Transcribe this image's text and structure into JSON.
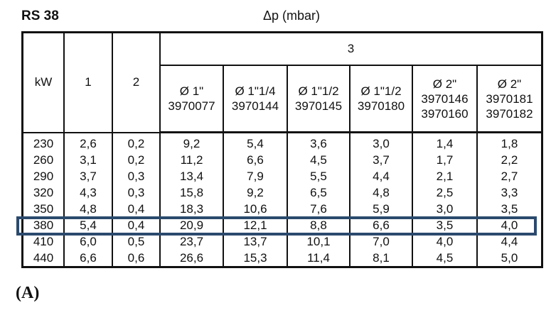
{
  "model_label": "RS 38",
  "unit_label": "Δp (mbar)",
  "header": {
    "col_kw": "kW",
    "col_1": "1",
    "col_2": "2",
    "group_3": "3",
    "sub": [
      {
        "size": "Ø 1\"",
        "codes": [
          "3970077"
        ]
      },
      {
        "size": "Ø 1\"1/4",
        "codes": [
          "3970144"
        ]
      },
      {
        "size": "Ø 1\"1/2",
        "codes": [
          "3970145"
        ]
      },
      {
        "size": "Ø 1\"1/2",
        "codes": [
          "3970180"
        ]
      },
      {
        "size": "Ø 2\"",
        "codes": [
          "3970146",
          "3970160"
        ]
      },
      {
        "size": "Ø 2\"",
        "codes": [
          "3970181",
          "3970182"
        ]
      }
    ]
  },
  "rows": [
    [
      "230",
      "2,6",
      "0,2",
      "9,2",
      "5,4",
      "3,6",
      "3,0",
      "1,4",
      "1,8"
    ],
    [
      "260",
      "3,1",
      "0,2",
      "11,2",
      "6,6",
      "4,5",
      "3,7",
      "1,7",
      "2,2"
    ],
    [
      "290",
      "3,7",
      "0,3",
      "13,4",
      "7,9",
      "5,5",
      "4,4",
      "2,1",
      "2,7"
    ],
    [
      "320",
      "4,3",
      "0,3",
      "15,8",
      "9,2",
      "6,5",
      "4,8",
      "2,5",
      "3,3"
    ],
    [
      "350",
      "4,8",
      "0,4",
      "18,3",
      "10,6",
      "7,6",
      "5,9",
      "3,0",
      "3,5"
    ],
    [
      "380",
      "5,4",
      "0,4",
      "20,9",
      "12,1",
      "8,8",
      "6,6",
      "3,5",
      "4,0"
    ],
    [
      "410",
      "6,0",
      "0,5",
      "23,7",
      "13,7",
      "10,1",
      "7,0",
      "4,0",
      "4,4"
    ],
    [
      "440",
      "6,6",
      "0,6",
      "26,6",
      "15,3",
      "11,4",
      "8,1",
      "4,5",
      "5,0"
    ]
  ],
  "highlight_row_kw": "380",
  "caption": "(A)",
  "colors": {
    "border": "#111111",
    "highlight": "#2b4a6d",
    "background": "#ffffff"
  }
}
